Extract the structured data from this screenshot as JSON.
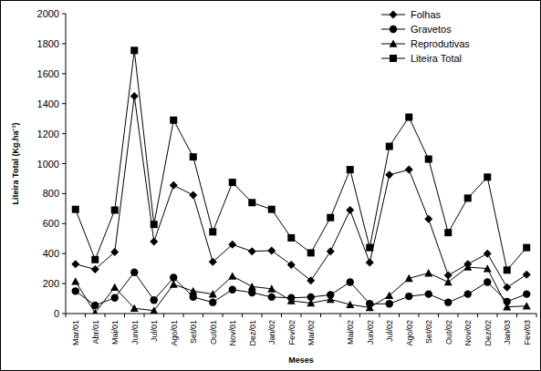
{
  "chart_data": {
    "type": "line",
    "x_label": "Meses",
    "y_label": "Liteira Total (Kg.ha⁻¹)",
    "categories": [
      "Mar/01",
      "Abr/01",
      "Mai/01",
      "Jun/01",
      "Jul/01",
      "Ago/01",
      "Set/01",
      "Out/01",
      "Nov/01",
      "Dez/01",
      "Jan/02",
      "Fev/02",
      "Mar/02",
      null,
      "Mai/02",
      "Jun/02",
      "Jul/02",
      "Ago/02",
      "Set/02",
      "Out/02",
      "Nov/02",
      "Dez/02",
      "Jan/03",
      "Fev/03"
    ],
    "series": [
      {
        "name": "Folhas",
        "color": "#000000",
        "marker": "diamond",
        "values": [
          330,
          295,
          410,
          1450,
          480,
          855,
          790,
          345,
          460,
          415,
          420,
          325,
          220,
          415,
          690,
          340,
          925,
          960,
          630,
          255,
          330,
          400,
          175,
          260
        ]
      },
      {
        "name": "Gravetos",
        "color": "#000000",
        "marker": "circle",
        "values": [
          150,
          55,
          105,
          275,
          90,
          240,
          110,
          75,
          160,
          140,
          110,
          105,
          110,
          125,
          210,
          65,
          65,
          115,
          130,
          75,
          130,
          210,
          80,
          130
        ]
      },
      {
        "name": "Reprodutivas",
        "color": "#000000",
        "marker": "triangle",
        "values": [
          215,
          5,
          175,
          35,
          20,
          195,
          150,
          130,
          250,
          180,
          165,
          85,
          70,
          95,
          60,
          40,
          120,
          235,
          270,
          210,
          310,
          300,
          45,
          50
        ]
      },
      {
        "name": "Liteira Total",
        "color": "#000000",
        "marker": "square",
        "values": [
          695,
          360,
          690,
          1755,
          595,
          1290,
          1045,
          545,
          875,
          740,
          695,
          505,
          405,
          640,
          960,
          440,
          1115,
          1310,
          1030,
          540,
          770,
          910,
          290,
          440
        ]
      }
    ],
    "ylim": [
      0,
      2000
    ],
    "yticks": [
      0,
      200,
      400,
      600,
      800,
      1000,
      1200,
      1400,
      1600,
      1800,
      2000
    ],
    "legend": "upper right"
  }
}
